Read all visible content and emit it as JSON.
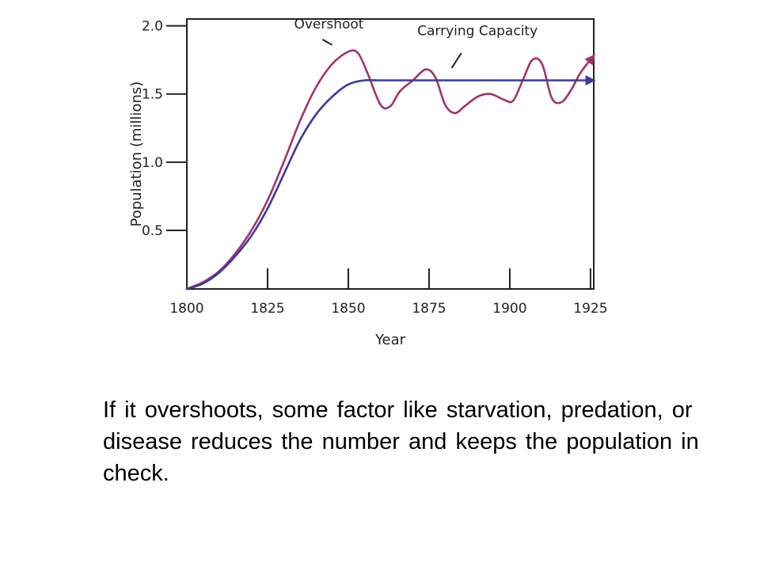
{
  "chart_data": {
    "type": "line",
    "xlabel": "Year",
    "ylabel": "Population (millions)",
    "xlim": [
      1800,
      1926
    ],
    "ylim": [
      0.07,
      2.05
    ],
    "x_ticks": [
      1800,
      1825,
      1850,
      1875,
      1900,
      1925
    ],
    "x_tick_labels": [
      "1800",
      "1825",
      "1850",
      "1875",
      "1900",
      "1925"
    ],
    "y_ticks": [
      0.5,
      1.0,
      1.5,
      2.0
    ],
    "y_tick_labels": [
      "0.5",
      "1.0",
      "1.5",
      "2.0"
    ],
    "grid": false,
    "legend": "none",
    "series": [
      {
        "key": "overshoot",
        "color": "#a2336b",
        "arrow": true,
        "x": [
          1800,
          1805,
          1810,
          1815,
          1820,
          1825,
          1830,
          1835,
          1840,
          1845,
          1850,
          1853,
          1856,
          1860,
          1863,
          1866,
          1870,
          1874,
          1877,
          1880,
          1883,
          1886,
          1890,
          1894,
          1898,
          1901,
          1904,
          1907,
          1910,
          1913,
          1916,
          1919,
          1922,
          1926
        ],
        "y": [
          0.07,
          0.12,
          0.2,
          0.33,
          0.5,
          0.72,
          1.0,
          1.3,
          1.55,
          1.72,
          1.81,
          1.8,
          1.65,
          1.42,
          1.41,
          1.52,
          1.6,
          1.68,
          1.62,
          1.42,
          1.36,
          1.41,
          1.48,
          1.5,
          1.46,
          1.45,
          1.6,
          1.75,
          1.72,
          1.47,
          1.44,
          1.53,
          1.66,
          1.78
        ]
      },
      {
        "key": "carrying-capacity",
        "color": "#3a3a9e",
        "arrow": true,
        "x": [
          1800,
          1805,
          1810,
          1815,
          1820,
          1825,
          1830,
          1835,
          1840,
          1845,
          1850,
          1855,
          1860,
          1870,
          1880,
          1890,
          1900,
          1910,
          1920,
          1926
        ],
        "y": [
          0.07,
          0.11,
          0.19,
          0.31,
          0.46,
          0.66,
          0.91,
          1.16,
          1.35,
          1.48,
          1.57,
          1.6,
          1.6,
          1.6,
          1.6,
          1.6,
          1.6,
          1.6,
          1.6,
          1.6
        ]
      }
    ],
    "annotations": [
      {
        "key": "overshoot",
        "text": "Overshoot",
        "x": 1844,
        "y": 1.98,
        "line_from": [
          1842,
          1.9
        ],
        "line_to": [
          1845,
          1.86
        ]
      },
      {
        "key": "carrying-capacity",
        "text": "Carrying Capacity",
        "x": 1890,
        "y": 1.93,
        "line_from": [
          1885,
          1.8
        ],
        "line_to": [
          1882,
          1.69
        ]
      }
    ]
  },
  "caption": {
    "text": "If it overshoots, some factor like starvation, predation, or disease reduces the number and keeps the population in check."
  }
}
